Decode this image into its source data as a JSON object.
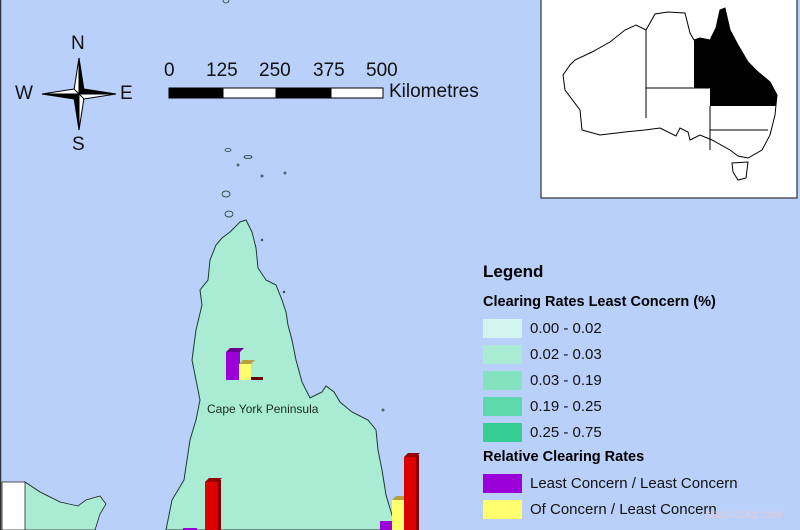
{
  "compass": {
    "n": "N",
    "s": "S",
    "e": "E",
    "w": "W"
  },
  "scale_bar": {
    "ticks": [
      "0",
      "125",
      "250",
      "375",
      "500"
    ],
    "unit": "Kilometres"
  },
  "region_label": "Cape York Peninsula",
  "legend": {
    "title": "Legend",
    "clearing_title": "Clearing Rates Least Concern (%)",
    "clearing_classes": [
      {
        "label": "0.00 - 0.02",
        "color": "#d2f5ee"
      },
      {
        "label": "0.02 - 0.03",
        "color": "#a9ecd3"
      },
      {
        "label": "0.03 - 0.19",
        "color": "#84e2c0"
      },
      {
        "label": "0.19 - 0.25",
        "color": "#5cd9ad"
      },
      {
        "label": "0.25 - 0.75",
        "color": "#35cf95"
      }
    ],
    "relative_title": "Relative Clearing Rates",
    "relative_classes": [
      {
        "label": "Least Concern / Least Concern",
        "color": "#9b00d8"
      },
      {
        "label": "Of Concern / Least Concern",
        "color": "#ffff6e"
      }
    ]
  },
  "colors": {
    "ocean": "#b9d0fa",
    "land": "#a9ecd3",
    "bar_red": "#dd0000"
  },
  "inset": {
    "highlighted_state": "Queensland"
  },
  "watermark": "SCIENCEAQ.COM"
}
